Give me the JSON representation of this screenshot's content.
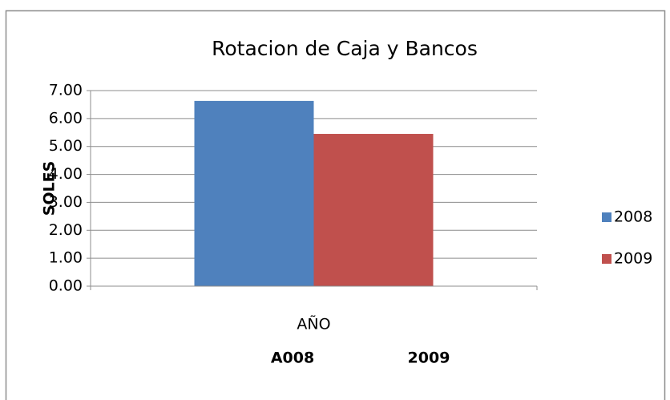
{
  "chart_data": {
    "type": "bar",
    "title": "Rotacion de Caja y Bancos",
    "y_axis_label": "SOLES",
    "categories": [
      "AÑO"
    ],
    "series": [
      {
        "name": "2008",
        "color": "#4f81bd",
        "values": [
          6.63
        ]
      },
      {
        "name": "2009",
        "color": "#c0504d",
        "values": [
          5.45
        ]
      }
    ],
    "ylim": [
      0,
      7
    ],
    "yticks": [
      {
        "value": 0,
        "label": "0.00"
      },
      {
        "value": 1,
        "label": "1.00"
      },
      {
        "value": 2,
        "label": "2.00"
      },
      {
        "value": 3,
        "label": "3.00"
      },
      {
        "value": 4,
        "label": "4.00"
      },
      {
        "value": 5,
        "label": "5.00"
      },
      {
        "value": 6,
        "label": "6.00"
      },
      {
        "value": 7,
        "label": "7.00"
      }
    ],
    "grid": true,
    "legend": "right",
    "annotations": [
      "A008",
      "2009"
    ]
  }
}
